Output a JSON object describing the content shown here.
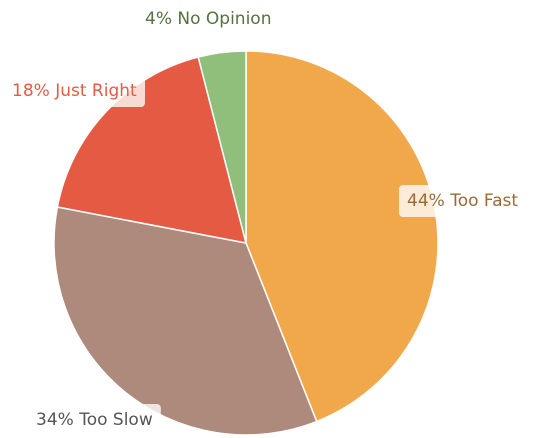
{
  "chart_data": {
    "type": "pie",
    "categories": [
      "Too Fast",
      "Too Slow",
      "Just Right",
      "No Opinion"
    ],
    "values": [
      44,
      34,
      18,
      4
    ],
    "value_labels": [
      "44%",
      "34%",
      "18%",
      "4%"
    ],
    "colors": [
      "#f0a84b",
      "#ad8a7b",
      "#e55a42",
      "#8fbf7a"
    ],
    "label_colors": [
      "#9a6a34",
      "#555555",
      "#e55a42",
      "#55723f"
    ]
  }
}
